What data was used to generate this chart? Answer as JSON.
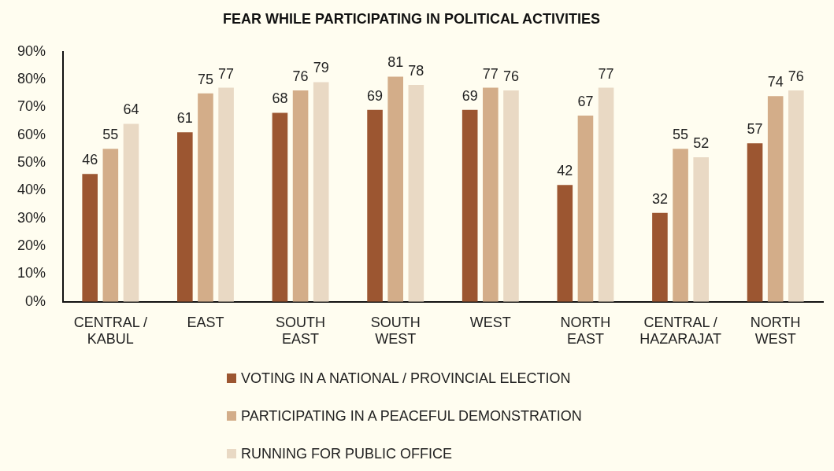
{
  "chart_data": {
    "type": "bar",
    "title": "FEAR WHILE PARTICIPATING IN POLITICAL ACTIVITIES",
    "categories": [
      "CENTRAL / KABUL",
      "EAST",
      "SOUTH EAST",
      "SOUTH WEST",
      "WEST",
      "NORTH EAST",
      "CENTRAL / HAZARAJAT",
      "NORTH WEST"
    ],
    "series": [
      {
        "name": "VOTING IN A NATIONAL / PROVINCIAL ELECTION",
        "color": "#9c5631",
        "values": [
          46,
          61,
          68,
          69,
          69,
          42,
          32,
          57
        ]
      },
      {
        "name": "PARTICIPATING IN A PEACEFUL DEMONSTRATION",
        "color": "#d3ad89",
        "values": [
          55,
          75,
          76,
          81,
          77,
          67,
          55,
          74
        ]
      },
      {
        "name": "RUNNING FOR PUBLIC OFFICE",
        "color": "#e9d9c4",
        "values": [
          64,
          77,
          79,
          78,
          76,
          77,
          52,
          76
        ]
      }
    ],
    "ylim": [
      0,
      90
    ],
    "yticks": [
      {
        "value": 0,
        "label": "0%"
      },
      {
        "value": 10,
        "label": "10%"
      },
      {
        "value": 20,
        "label": "20%"
      },
      {
        "value": 30,
        "label": "30%"
      },
      {
        "value": 40,
        "label": "40%"
      },
      {
        "value": 50,
        "label": "50%"
      },
      {
        "value": 60,
        "label": "60%"
      },
      {
        "value": 70,
        "label": "70%"
      },
      {
        "value": 80,
        "label": "80%"
      },
      {
        "value": 90,
        "label": "90%"
      }
    ],
    "grid": false,
    "legend": "bottom",
    "data_labels": true
  }
}
